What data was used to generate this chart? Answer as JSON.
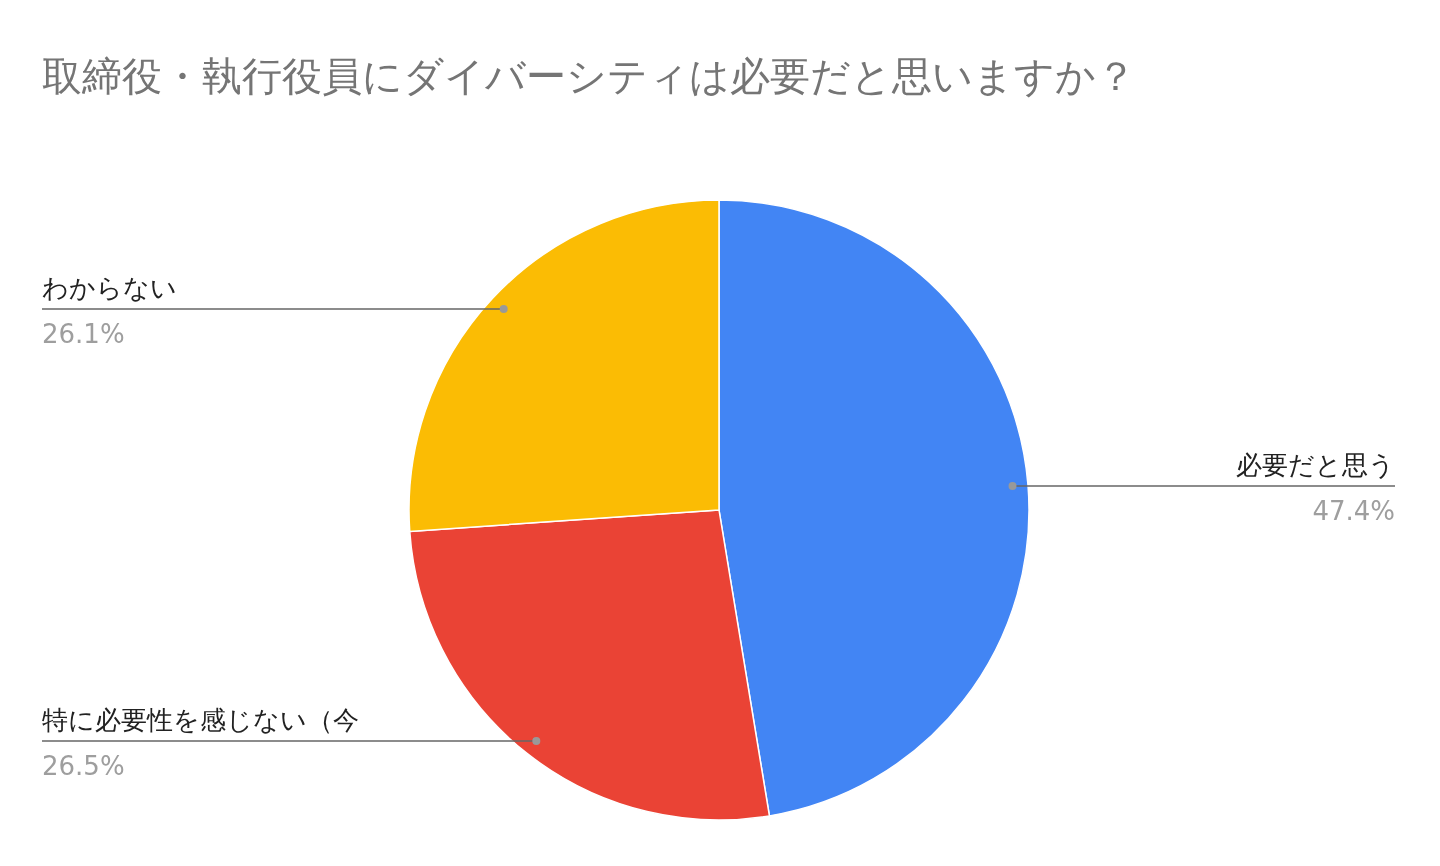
{
  "chart_data": {
    "type": "pie",
    "title": "取締役・執行役員にダイバーシティは必要だと思いますか？",
    "categories": [
      "必要だと思う",
      "特に必要性を感じない（今",
      "わからない"
    ],
    "values": [
      47.4,
      26.5,
      26.1
    ],
    "colors": [
      "#4285f4",
      "#ea4335",
      "#fbbc04"
    ],
    "value_labels": [
      "47.4%",
      "26.5%",
      "26.1%"
    ]
  }
}
